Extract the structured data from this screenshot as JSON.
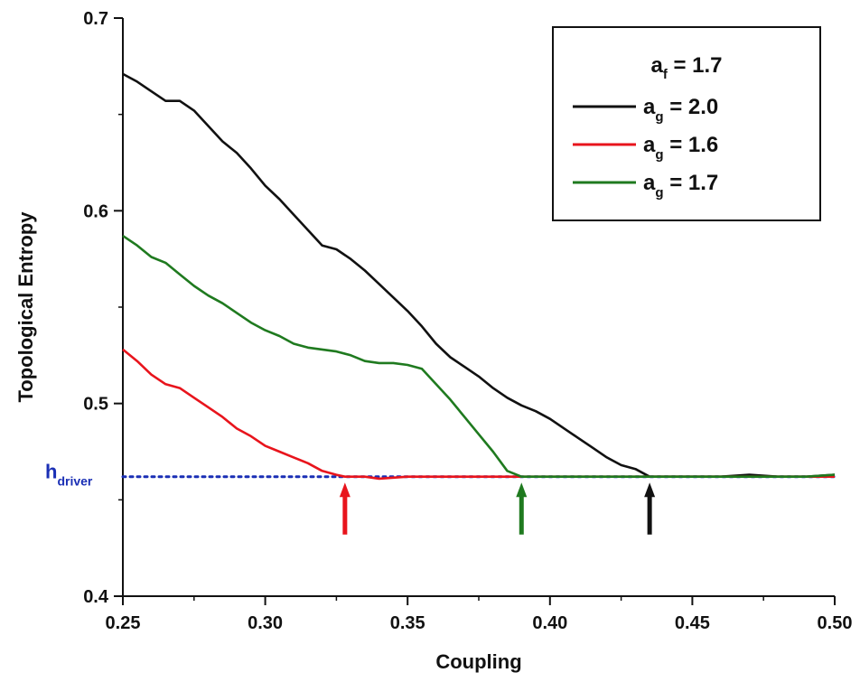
{
  "chart_data": {
    "type": "line",
    "xlabel": "Coupling",
    "ylabel": "Topological Entropy",
    "xlim": [
      0.25,
      0.5
    ],
    "ylim": [
      0.4,
      0.7
    ],
    "x_ticks": [
      "0.25",
      "0.30",
      "0.35",
      "0.40",
      "0.45",
      "0.50"
    ],
    "y_ticks": [
      "0.4",
      "0.5",
      "0.6",
      "0.7"
    ],
    "grid": false,
    "legend_placement": "top-right",
    "legend": {
      "title_main": "a",
      "title_sub": "f",
      "title_value": " = 1.7",
      "entries": [
        {
          "main": "a",
          "sub": "g",
          "value": " = 2.0",
          "color": "#111111"
        },
        {
          "main": "a",
          "sub": "g",
          "value": " = 1.6",
          "color": "#e8141c"
        },
        {
          "main": "a",
          "sub": "g",
          "value": " = 1.7",
          "color": "#1f7a1f"
        }
      ]
    },
    "series": [
      {
        "name": "ag = 2.0",
        "color": "#111111",
        "points": [
          [
            0.25,
            0.671
          ],
          [
            0.255,
            0.667
          ],
          [
            0.26,
            0.662
          ],
          [
            0.265,
            0.657
          ],
          [
            0.27,
            0.657
          ],
          [
            0.275,
            0.652
          ],
          [
            0.28,
            0.644
          ],
          [
            0.285,
            0.636
          ],
          [
            0.29,
            0.63
          ],
          [
            0.295,
            0.622
          ],
          [
            0.3,
            0.613
          ],
          [
            0.305,
            0.606
          ],
          [
            0.31,
            0.598
          ],
          [
            0.315,
            0.59
          ],
          [
            0.32,
            0.582
          ],
          [
            0.325,
            0.58
          ],
          [
            0.33,
            0.575
          ],
          [
            0.335,
            0.569
          ],
          [
            0.34,
            0.562
          ],
          [
            0.345,
            0.555
          ],
          [
            0.35,
            0.548
          ],
          [
            0.355,
            0.54
          ],
          [
            0.36,
            0.531
          ],
          [
            0.365,
            0.524
          ],
          [
            0.37,
            0.519
          ],
          [
            0.375,
            0.514
          ],
          [
            0.38,
            0.508
          ],
          [
            0.385,
            0.503
          ],
          [
            0.39,
            0.499
          ],
          [
            0.395,
            0.496
          ],
          [
            0.4,
            0.492
          ],
          [
            0.405,
            0.487
          ],
          [
            0.41,
            0.482
          ],
          [
            0.415,
            0.477
          ],
          [
            0.42,
            0.472
          ],
          [
            0.425,
            0.468
          ],
          [
            0.43,
            0.466
          ],
          [
            0.435,
            0.462
          ],
          [
            0.44,
            0.462
          ],
          [
            0.45,
            0.462
          ],
          [
            0.46,
            0.462
          ],
          [
            0.47,
            0.463
          ],
          [
            0.48,
            0.462
          ],
          [
            0.49,
            0.462
          ],
          [
            0.5,
            0.463
          ]
        ]
      },
      {
        "name": "ag = 1.6",
        "color": "#e8141c",
        "points": [
          [
            0.25,
            0.528
          ],
          [
            0.255,
            0.522
          ],
          [
            0.26,
            0.515
          ],
          [
            0.265,
            0.51
          ],
          [
            0.27,
            0.508
          ],
          [
            0.275,
            0.503
          ],
          [
            0.28,
            0.498
          ],
          [
            0.285,
            0.493
          ],
          [
            0.29,
            0.487
          ],
          [
            0.295,
            0.483
          ],
          [
            0.3,
            0.478
          ],
          [
            0.305,
            0.475
          ],
          [
            0.31,
            0.472
          ],
          [
            0.315,
            0.469
          ],
          [
            0.32,
            0.465
          ],
          [
            0.325,
            0.463
          ],
          [
            0.328,
            0.462
          ],
          [
            0.335,
            0.462
          ],
          [
            0.34,
            0.461
          ],
          [
            0.35,
            0.462
          ],
          [
            0.36,
            0.462
          ],
          [
            0.37,
            0.462
          ],
          [
            0.38,
            0.462
          ],
          [
            0.39,
            0.462
          ],
          [
            0.4,
            0.462
          ],
          [
            0.41,
            0.462
          ],
          [
            0.42,
            0.462
          ],
          [
            0.43,
            0.462
          ],
          [
            0.44,
            0.462
          ],
          [
            0.45,
            0.462
          ],
          [
            0.46,
            0.462
          ],
          [
            0.47,
            0.462
          ],
          [
            0.48,
            0.462
          ],
          [
            0.49,
            0.462
          ],
          [
            0.5,
            0.462
          ]
        ]
      },
      {
        "name": "ag = 1.7",
        "color": "#1f7a1f",
        "points": [
          [
            0.25,
            0.587
          ],
          [
            0.255,
            0.582
          ],
          [
            0.26,
            0.576
          ],
          [
            0.265,
            0.573
          ],
          [
            0.27,
            0.567
          ],
          [
            0.275,
            0.561
          ],
          [
            0.28,
            0.556
          ],
          [
            0.285,
            0.552
          ],
          [
            0.29,
            0.547
          ],
          [
            0.295,
            0.542
          ],
          [
            0.3,
            0.538
          ],
          [
            0.305,
            0.535
          ],
          [
            0.31,
            0.531
          ],
          [
            0.315,
            0.529
          ],
          [
            0.32,
            0.528
          ],
          [
            0.325,
            0.527
          ],
          [
            0.33,
            0.525
          ],
          [
            0.335,
            0.522
          ],
          [
            0.34,
            0.521
          ],
          [
            0.345,
            0.521
          ],
          [
            0.35,
            0.52
          ],
          [
            0.355,
            0.518
          ],
          [
            0.36,
            0.51
          ],
          [
            0.365,
            0.502
          ],
          [
            0.37,
            0.493
          ],
          [
            0.375,
            0.484
          ],
          [
            0.38,
            0.475
          ],
          [
            0.385,
            0.465
          ],
          [
            0.39,
            0.462
          ],
          [
            0.4,
            0.462
          ],
          [
            0.41,
            0.462
          ],
          [
            0.42,
            0.462
          ],
          [
            0.43,
            0.462
          ],
          [
            0.44,
            0.462
          ],
          [
            0.45,
            0.462
          ],
          [
            0.46,
            0.462
          ],
          [
            0.47,
            0.462
          ],
          [
            0.48,
            0.462
          ],
          [
            0.49,
            0.462
          ],
          [
            0.5,
            0.463
          ]
        ]
      }
    ],
    "reference_line": {
      "label_main": "h",
      "label_sub": "driver",
      "value": 0.462,
      "color": "#1a2fb5",
      "style": "dotted"
    },
    "arrows": [
      {
        "x": 0.328,
        "color": "#e8141c",
        "y_from": 0.432,
        "y_to": 0.458
      },
      {
        "x": 0.39,
        "color": "#1f7a1f",
        "y_from": 0.432,
        "y_to": 0.458
      },
      {
        "x": 0.435,
        "color": "#111111",
        "y_from": 0.432,
        "y_to": 0.458
      }
    ]
  }
}
